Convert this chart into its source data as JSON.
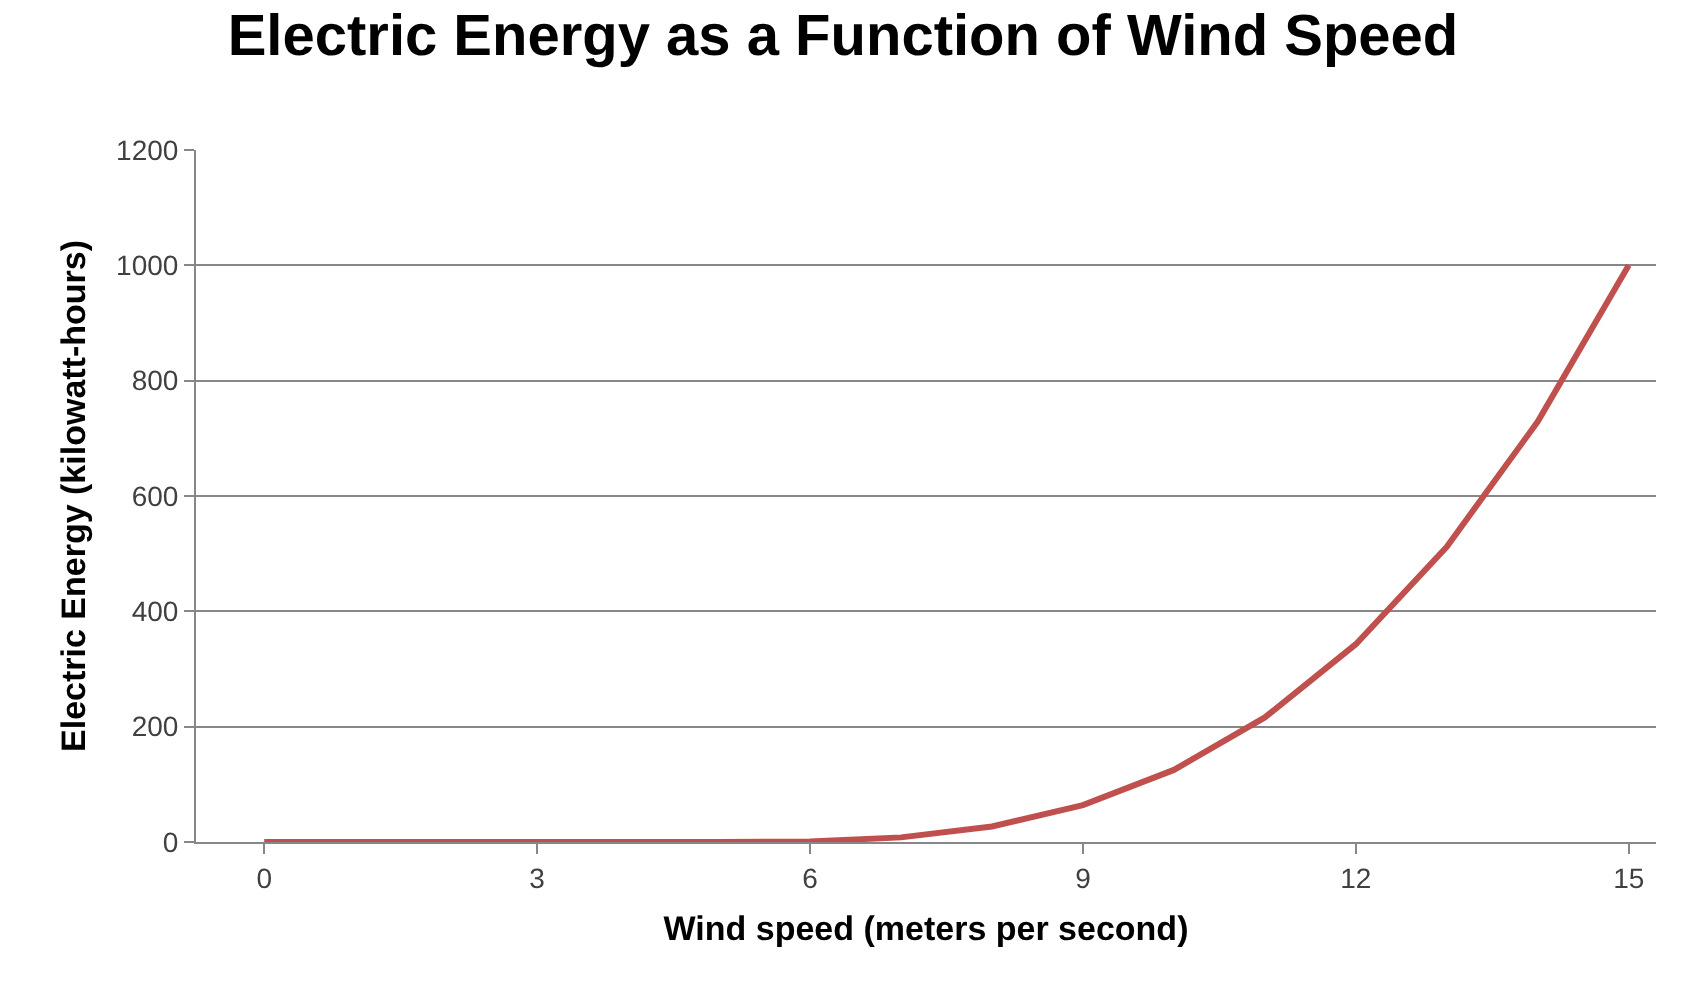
{
  "chart_data": {
    "type": "line",
    "title": "Electric Energy as a Function of Wind Speed",
    "xlabel": "Wind speed (meters per second)",
    "ylabel": "Electric Energy (kilowatt-hours)",
    "x": [
      0,
      1,
      2,
      3,
      4,
      5,
      6,
      7,
      8,
      9,
      10,
      11,
      12,
      13,
      14,
      15
    ],
    "series": [
      {
        "color": "#c0504d",
        "values": [
          0,
          0,
          0,
          0,
          0,
          0,
          1,
          8,
          27,
          64,
          125,
          216,
          343,
          512,
          729,
          1000
        ]
      }
    ],
    "xlim": [
      -0.75,
      15.3
    ],
    "xticks": [
      0,
      3,
      6,
      9,
      12,
      15
    ],
    "ylim": [
      0,
      1200
    ],
    "yticks": [
      0,
      200,
      400,
      600,
      800,
      1000,
      1200
    ],
    "grid": "y",
    "marker": "none",
    "line_style": "solid"
  }
}
